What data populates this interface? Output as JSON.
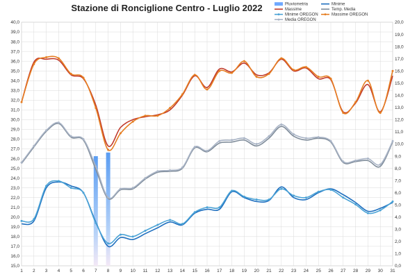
{
  "chart_data": {
    "type": "line",
    "title": "Stazione di Ronciglione Centro - Luglio 2022",
    "x": [
      1,
      2,
      3,
      4,
      5,
      6,
      7,
      8,
      9,
      10,
      11,
      12,
      13,
      14,
      15,
      16,
      17,
      18,
      19,
      20,
      21,
      22,
      23,
      24,
      25,
      26,
      27,
      28,
      29,
      30,
      31
    ],
    "xlim": [
      1,
      31
    ],
    "ylim": [
      15,
      40
    ],
    "y_ticks": [
      "15,0",
      "16,0",
      "17,0",
      "18,0",
      "19,0",
      "20,0",
      "21,0",
      "22,0",
      "23,0",
      "24,0",
      "25,0",
      "26,0",
      "27,0",
      "28,0",
      "29,0",
      "30,0",
      "31,0",
      "32,0",
      "33,0",
      "34,0",
      "35,0",
      "36,0",
      "37,0",
      "38,0",
      "39,0",
      "40,0"
    ],
    "y2lim": [
      0,
      20
    ],
    "y2_ticks": [
      "0,0",
      "1,0",
      "2,0",
      "3,0",
      "4,0",
      "5,0",
      "6,0",
      "7,0",
      "8,0",
      "9,0",
      "10,0",
      "11,0",
      "12,0",
      "13,0",
      "14,0",
      "15,0",
      "16,0",
      "17,0",
      "18,0",
      "19,0",
      "20,0"
    ],
    "grid": true,
    "legend_position": "top-right",
    "series": [
      {
        "name": "Pluviometria",
        "kind": "bar",
        "axis": "right",
        "color": "#6fa8ff",
        "values": [
          0,
          0,
          0,
          0,
          0,
          0,
          9.0,
          9.3,
          0,
          0,
          0,
          0,
          0,
          0,
          0,
          0,
          0,
          0,
          0,
          0,
          0,
          0,
          0,
          0,
          0,
          0,
          0,
          0,
          0,
          0,
          0
        ]
      },
      {
        "name": "Minime",
        "kind": "line",
        "axis": "left",
        "color": "#1f6fbf",
        "values": [
          19.3,
          19.6,
          23.0,
          23.6,
          23.2,
          22.5,
          19.5,
          17.0,
          17.9,
          17.7,
          18.3,
          18.9,
          19.5,
          19.2,
          20.4,
          20.8,
          20.8,
          22.6,
          22.0,
          21.6,
          21.7,
          23.1,
          22.0,
          21.8,
          22.5,
          22.9,
          22.3,
          21.5,
          20.6,
          20.9,
          21.5
        ]
      },
      {
        "name": "Minime OREGON",
        "kind": "line",
        "axis": "left",
        "color": "#4ba3d6",
        "values": [
          19.6,
          19.8,
          23.2,
          23.7,
          23.0,
          22.5,
          19.4,
          17.3,
          18.2,
          18.0,
          18.6,
          19.2,
          19.7,
          19.3,
          20.5,
          21.0,
          21.0,
          22.7,
          22.1,
          21.8,
          21.8,
          22.9,
          22.2,
          22.0,
          22.6,
          22.8,
          22.0,
          21.3,
          20.4,
          20.7,
          21.6
        ]
      },
      {
        "name": "Massime",
        "kind": "line",
        "axis": "left",
        "color": "#c0392b",
        "values": [
          31.8,
          35.9,
          36.2,
          36.1,
          34.6,
          34.2,
          31.5,
          27.3,
          29.2,
          30.0,
          30.3,
          30.5,
          31.0,
          32.5,
          34.5,
          33.3,
          35.2,
          34.9,
          35.8,
          34.6,
          34.8,
          36.2,
          35.0,
          35.3,
          34.2,
          34.1,
          30.8,
          31.7,
          33.6,
          30.8,
          34.5
        ]
      },
      {
        "name": "Massime OREGON",
        "kind": "line",
        "axis": "left",
        "color": "#e67e22",
        "values": [
          31.8,
          35.7,
          36.4,
          36.3,
          34.7,
          34.3,
          31.2,
          26.9,
          28.6,
          29.8,
          30.4,
          30.4,
          31.2,
          32.6,
          34.6,
          33.1,
          35.0,
          34.8,
          36.0,
          34.4,
          34.7,
          36.3,
          35.1,
          35.4,
          34.4,
          34.2,
          30.7,
          31.8,
          34.0,
          30.7,
          35.0
        ]
      },
      {
        "name": "Temp. Media",
        "kind": "line",
        "axis": "left",
        "color": "#7f8c9a",
        "values": [
          25.5,
          27.2,
          28.8,
          29.6,
          28.2,
          27.9,
          24.9,
          21.9,
          22.8,
          22.9,
          23.9,
          24.6,
          24.7,
          25.0,
          27.1,
          26.7,
          27.6,
          27.7,
          27.9,
          27.3,
          28.1,
          29.3,
          28.3,
          27.9,
          28.1,
          27.7,
          25.6,
          25.7,
          25.8,
          25.2,
          27.7
        ]
      },
      {
        "name": "Media OREGON",
        "kind": "line",
        "axis": "left",
        "color": "#a9b4c6",
        "values": [
          25.6,
          27.3,
          28.9,
          29.7,
          28.3,
          28.0,
          25.2,
          22.0,
          22.9,
          23.0,
          24.0,
          24.7,
          24.8,
          25.1,
          27.2,
          26.8,
          27.8,
          27.9,
          28.1,
          27.5,
          28.3,
          29.5,
          28.5,
          28.1,
          28.2,
          27.8,
          25.7,
          25.8,
          26.0,
          25.4,
          27.8
        ]
      }
    ],
    "legend": [
      {
        "label": "Pluviometria",
        "series": 0
      },
      {
        "label": "Massime",
        "series": 3
      },
      {
        "label": "Minime OREGON",
        "series": 2
      },
      {
        "label": "Media OREGON",
        "series": 6
      },
      {
        "label": "Minime",
        "series": 1
      },
      {
        "label": "Temp. Media",
        "series": 5
      },
      {
        "label": "Massime OREGON",
        "series": 4
      }
    ]
  }
}
